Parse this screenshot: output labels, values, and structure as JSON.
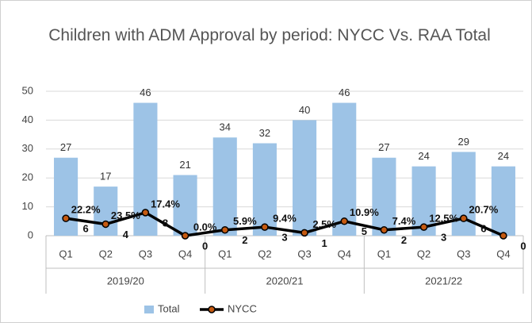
{
  "chart_data": {
    "type": "bar_line",
    "title": "Children with ADM Approval by period: NYCC Vs. RAA Total",
    "categories": [
      "Q1",
      "Q2",
      "Q3",
      "Q4",
      "Q1",
      "Q2",
      "Q3",
      "Q4",
      "Q1",
      "Q2",
      "Q3",
      "Q4"
    ],
    "groups": [
      "2019/20",
      "2020/21",
      "2021/22"
    ],
    "series": [
      {
        "name": "Total",
        "type": "bar",
        "color": "#9dc3e6",
        "values": [
          27,
          17,
          46,
          21,
          34,
          32,
          40,
          46,
          27,
          24,
          29,
          24
        ]
      },
      {
        "name": "NYCC",
        "type": "line",
        "color": "#000000",
        "marker_color": "#c55a11",
        "values": [
          6,
          4,
          8,
          0,
          2,
          3,
          1,
          5,
          2,
          3,
          6,
          0
        ],
        "percent_labels": [
          "22.2%",
          "23.5%",
          "17.4%",
          "0.0%",
          "5.9%",
          "9.4%",
          "2.5%",
          "10.9%",
          "7.4%",
          "12.5%",
          "20.7%",
          null
        ]
      }
    ],
    "ylim": [
      0,
      50
    ],
    "yticks": [
      0,
      10,
      20,
      30,
      40,
      50
    ],
    "grid": true,
    "legend": "bottom"
  }
}
